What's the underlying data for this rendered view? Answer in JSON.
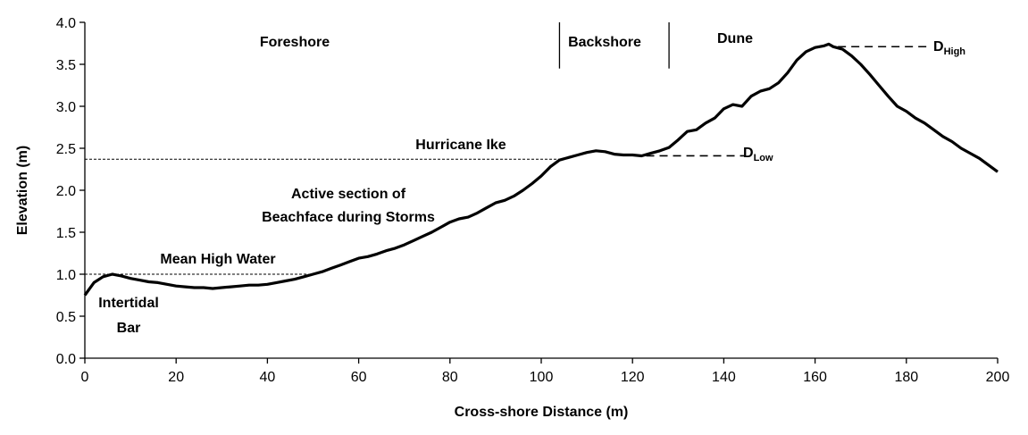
{
  "chart_data": {
    "type": "line",
    "xlabel": "Cross-shore Distance (m)",
    "ylabel": "Elevation (m)",
    "xlim": [
      0,
      200
    ],
    "ylim": [
      0,
      4.0
    ],
    "xticks": [
      "0",
      "20",
      "40",
      "60",
      "80",
      "100",
      "120",
      "140",
      "160",
      "180",
      "200"
    ],
    "yticks": [
      "0.0",
      "0.5",
      "1.0",
      "1.5",
      "2.0",
      "2.5",
      "3.0",
      "3.5",
      "4.0"
    ],
    "grid": false,
    "series": [
      {
        "x": [
          0,
          2,
          4,
          6,
          8,
          10,
          12,
          14,
          16,
          18,
          20,
          22,
          24,
          26,
          28,
          30,
          32,
          34,
          36,
          38,
          40,
          42,
          44,
          46,
          48,
          50,
          52,
          54,
          56,
          58,
          60,
          62,
          64,
          66,
          68,
          70,
          72,
          74,
          76,
          78,
          80,
          82,
          84,
          86,
          88,
          90,
          92,
          94,
          96,
          98,
          100,
          102,
          104,
          106,
          108,
          110,
          112,
          114,
          116,
          118,
          120,
          122,
          124,
          126,
          128,
          130,
          132,
          134,
          136,
          138,
          140,
          142,
          144,
          146,
          148,
          150,
          152,
          154,
          156,
          158,
          160,
          162,
          163,
          164,
          166,
          168,
          170,
          172,
          174,
          176,
          178,
          180,
          182,
          184,
          186,
          188,
          190,
          192,
          194,
          196,
          198,
          200
        ],
        "y": [
          0.75,
          0.9,
          0.97,
          1.0,
          0.98,
          0.95,
          0.93,
          0.91,
          0.9,
          0.88,
          0.86,
          0.85,
          0.84,
          0.84,
          0.83,
          0.84,
          0.85,
          0.86,
          0.87,
          0.87,
          0.88,
          0.9,
          0.92,
          0.94,
          0.97,
          1.0,
          1.03,
          1.07,
          1.11,
          1.15,
          1.19,
          1.21,
          1.24,
          1.28,
          1.31,
          1.35,
          1.4,
          1.45,
          1.5,
          1.56,
          1.62,
          1.66,
          1.68,
          1.73,
          1.79,
          1.85,
          1.88,
          1.93,
          2.0,
          2.08,
          2.17,
          2.28,
          2.36,
          2.39,
          2.42,
          2.45,
          2.47,
          2.46,
          2.43,
          2.42,
          2.42,
          2.41,
          2.44,
          2.47,
          2.51,
          2.6,
          2.7,
          2.72,
          2.8,
          2.86,
          2.97,
          3.02,
          3.0,
          3.12,
          3.18,
          3.21,
          3.28,
          3.4,
          3.55,
          3.65,
          3.7,
          3.72,
          3.74,
          3.71,
          3.68,
          3.6,
          3.5,
          3.38,
          3.25,
          3.12,
          3.0,
          2.94,
          2.86,
          2.8,
          2.72,
          2.64,
          2.58,
          2.5,
          2.44,
          2.38,
          2.3,
          2.22
        ]
      }
    ],
    "annotations": {
      "foreshore": "Foreshore",
      "backshore": "Backshore",
      "dune": "Dune",
      "hurricane": "Hurricane Ike",
      "active_line1": "Active section of",
      "active_line2": "Beachface during Storms",
      "mhw": "Mean High Water",
      "intertidal_line1": "Intertidal",
      "intertidal_line2": "Bar",
      "d_high_main": "D",
      "d_high_sub": "High",
      "d_low_main": "D",
      "d_low_sub": "Low"
    },
    "reference_levels": {
      "mean_high_water": 1.0,
      "hurricane_ike": 2.37,
      "d_low": 2.41,
      "d_high": 3.71
    },
    "zone_boundaries_x": [
      104,
      128
    ]
  }
}
